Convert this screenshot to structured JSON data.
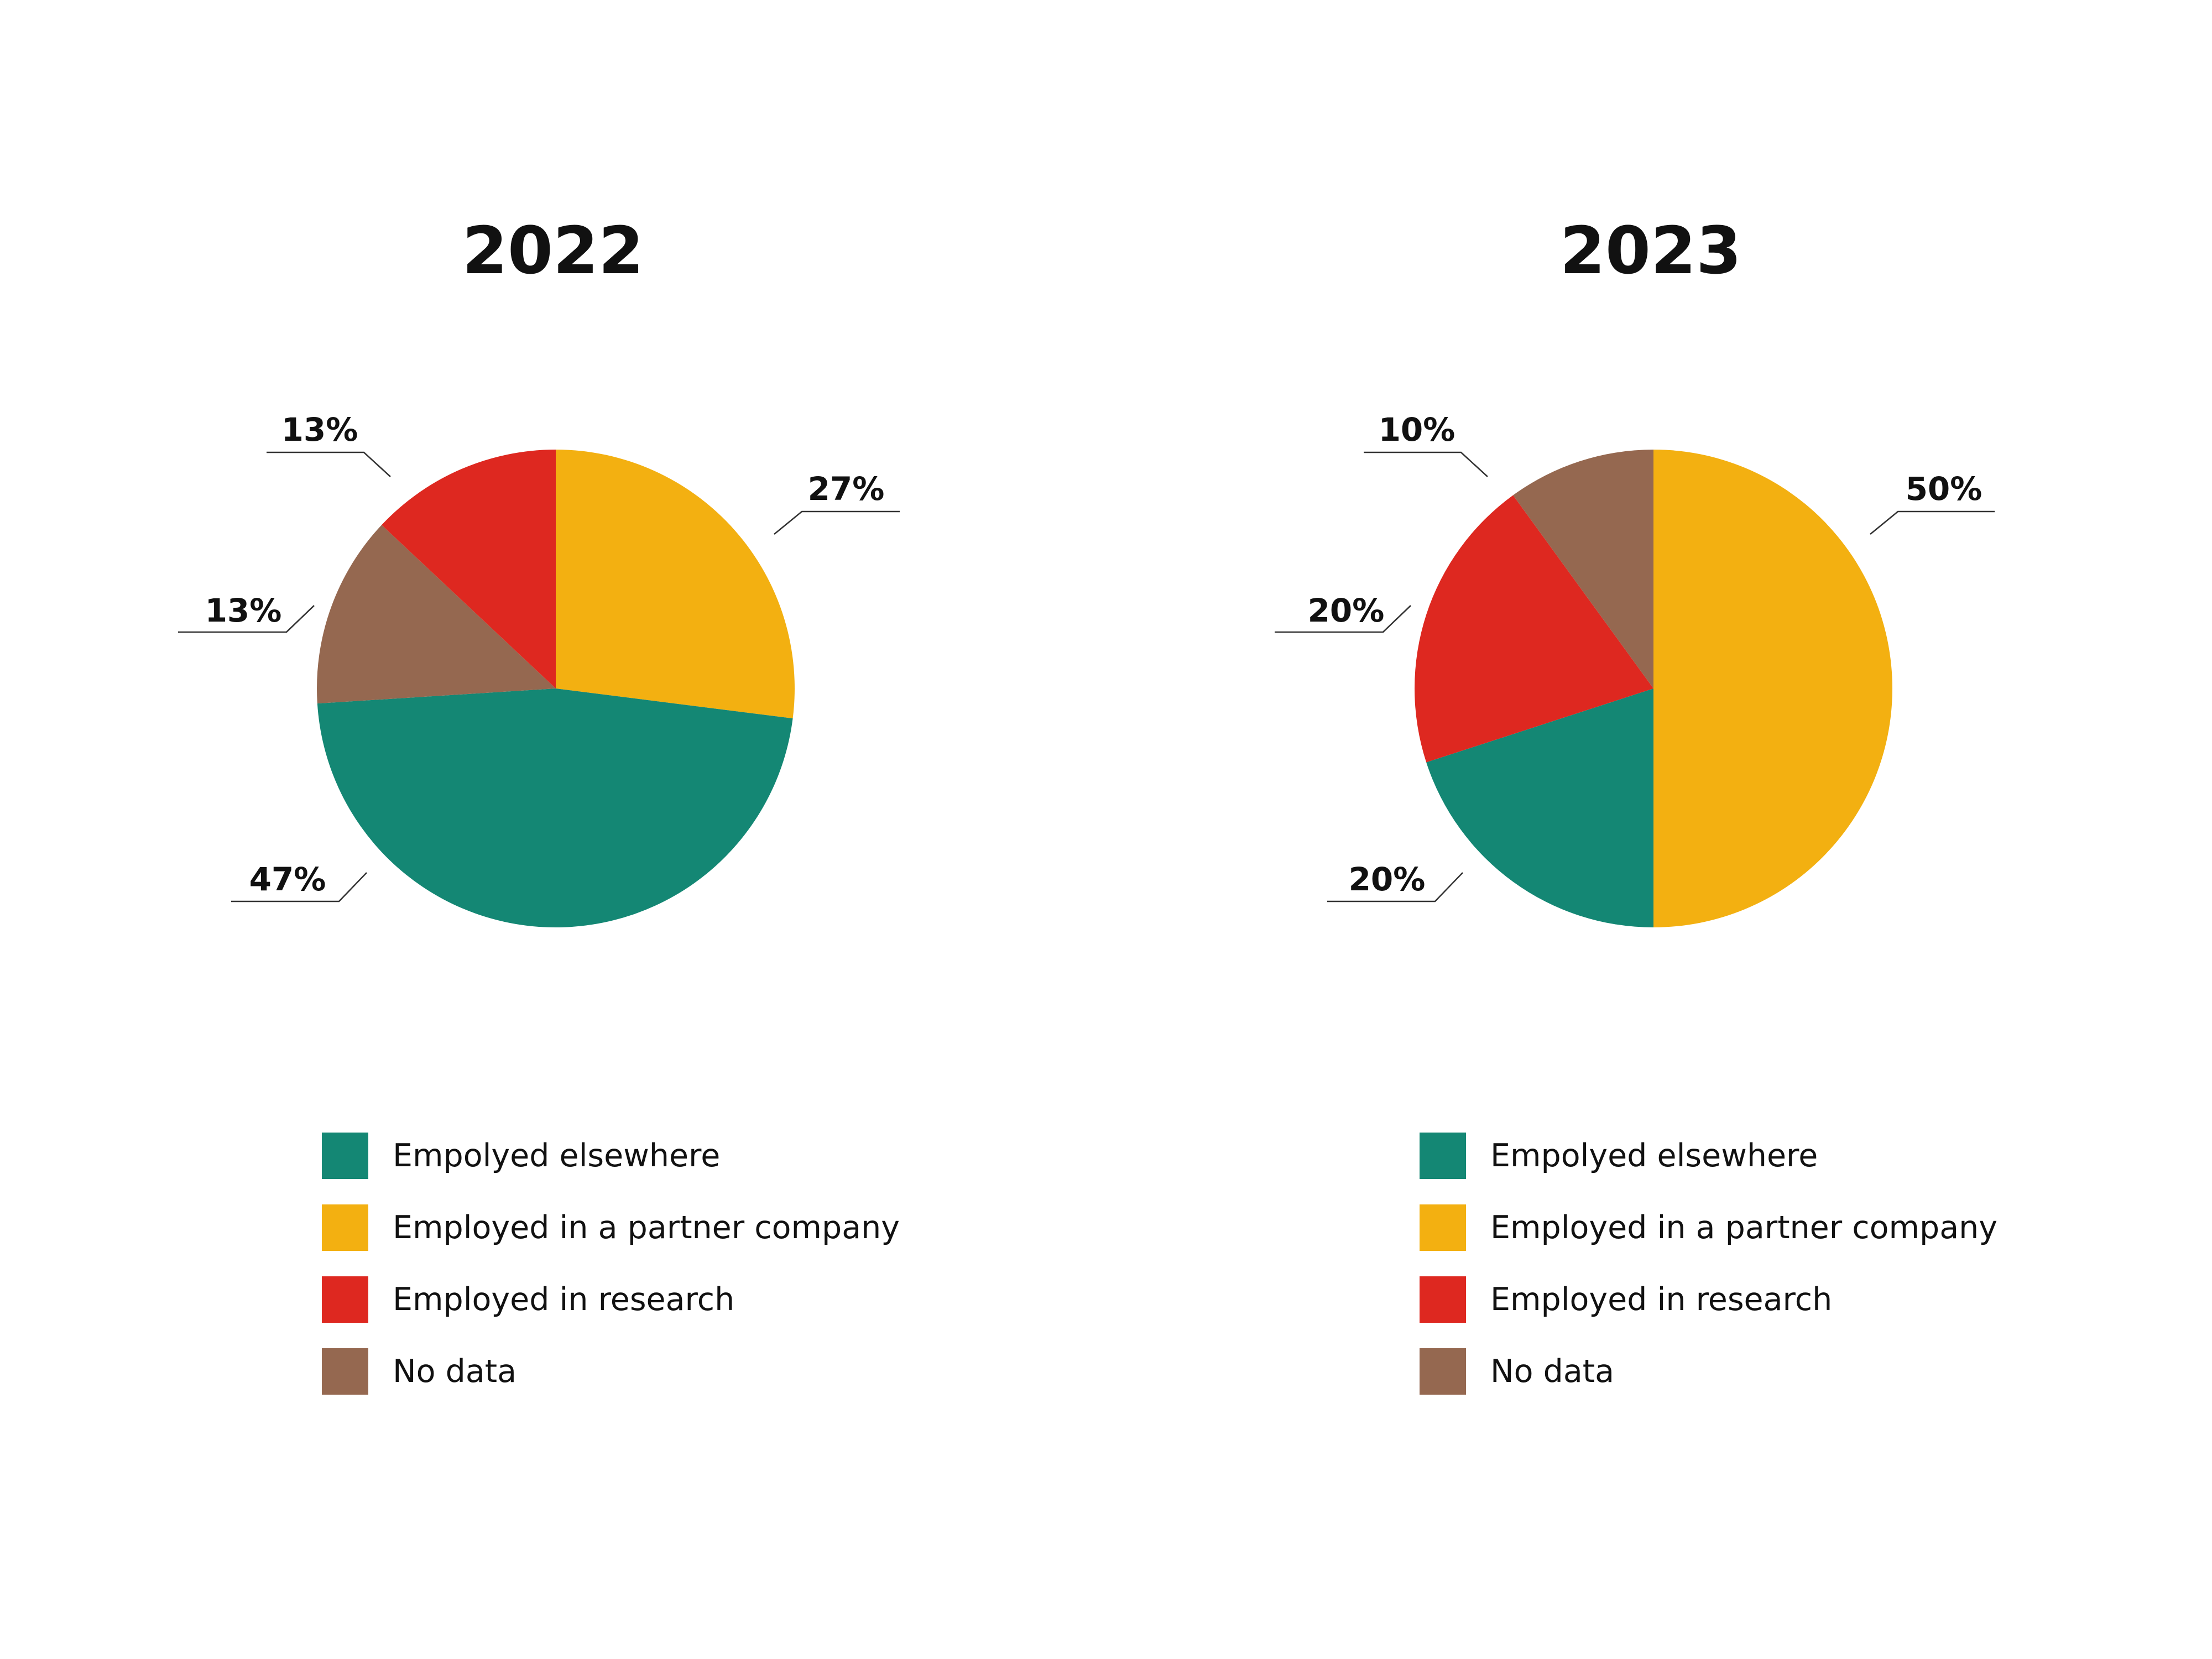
{
  "colors": {
    "elsewhere": "#148774",
    "partner": "#F3B011",
    "research": "#DE2820",
    "no_data": "#956850"
  },
  "chart_data": [
    {
      "type": "pie",
      "title": "2022",
      "slices": [
        {
          "label": "Employed in a partner company",
          "color_key": "partner",
          "value": 27,
          "display": "27%"
        },
        {
          "label": "Empolyed elsewhere",
          "color_key": "elsewhere",
          "value": 47,
          "display": "47%"
        },
        {
          "label": "No data",
          "color_key": "no_data",
          "value": 13,
          "display": "13%"
        },
        {
          "label": "Employed in research",
          "color_key": "research",
          "value": 13,
          "display": "13%"
        }
      ],
      "legend": [
        {
          "label": "Empolyed elsewhere",
          "color_key": "elsewhere"
        },
        {
          "label": "Employed in a partner company",
          "color_key": "partner"
        },
        {
          "label": "Employed in research",
          "color_key": "research"
        },
        {
          "label": "No data",
          "color_key": "no_data"
        }
      ]
    },
    {
      "type": "pie",
      "title": "2023",
      "slices": [
        {
          "label": "Employed in a partner company",
          "color_key": "partner",
          "value": 50,
          "display": "50%"
        },
        {
          "label": "Empolyed elsewhere",
          "color_key": "elsewhere",
          "value": 20,
          "display": "20%"
        },
        {
          "label": "Employed in research",
          "color_key": "research",
          "value": 20,
          "display": "20%"
        },
        {
          "label": "No data",
          "color_key": "no_data",
          "value": 10,
          "display": "10%"
        }
      ],
      "legend": [
        {
          "label": "Empolyed elsewhere",
          "color_key": "elsewhere"
        },
        {
          "label": "Employed in a partner company",
          "color_key": "partner"
        },
        {
          "label": "Employed in research",
          "color_key": "research"
        },
        {
          "label": "No data",
          "color_key": "no_data"
        }
      ]
    }
  ]
}
